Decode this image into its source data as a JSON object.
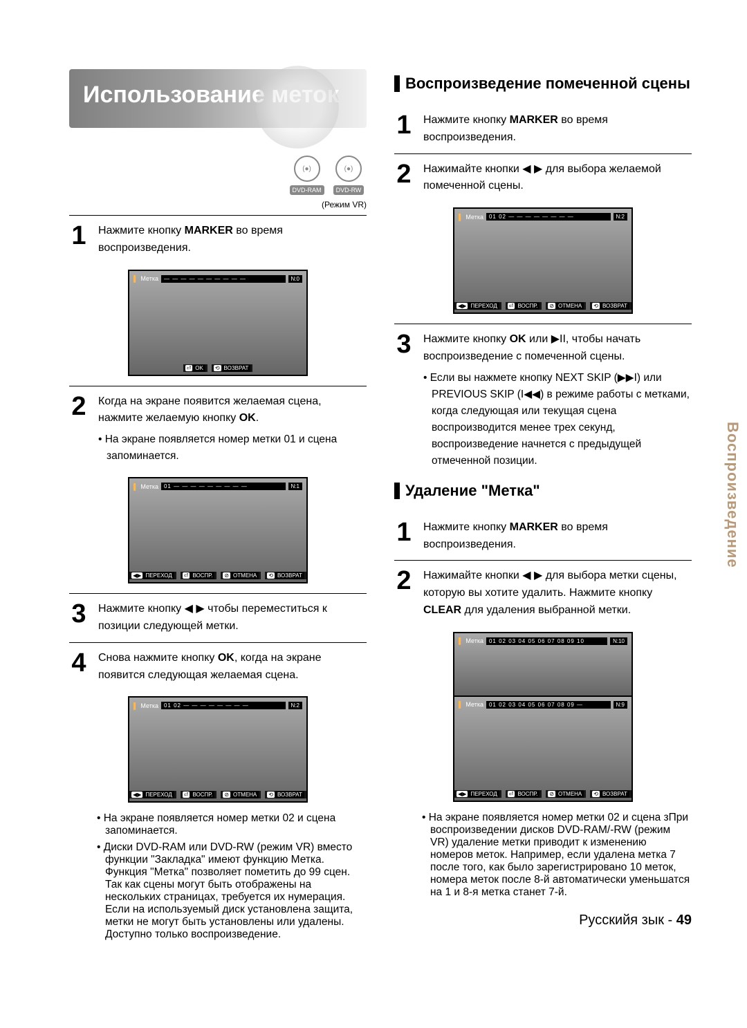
{
  "page": {
    "language_footer": "Русскийя зык",
    "page_number": "49",
    "side_tab": "Воспроизведение"
  },
  "banner": {
    "title": "Использование меток"
  },
  "disc_icons": {
    "items": [
      {
        "circle": "(●)",
        "label": "DVD-RAM"
      },
      {
        "circle": "(●)",
        "label": "DVD-RW"
      }
    ],
    "mode": "(Режим VR)"
  },
  "left_steps": [
    {
      "n": "1",
      "text_pre": "Нажмите кнопку ",
      "bold": "MARKER",
      "text_post": " во время воспроизведения.",
      "screenshot": {
        "label": "Метка",
        "slots": "— — — — — — — — — —",
        "count": "N:0",
        "bottom": [
          {
            "key": "⏎",
            "label": "OK"
          },
          {
            "key": "⟲",
            "label": "ВОЗВРАТ"
          }
        ]
      }
    },
    {
      "n": "2",
      "text_pre": "Когда на экране появится желаемая сцена, нажмите желаемую кнопку ",
      "bold": "OK",
      "text_post": ".",
      "bullets": [
        "На экране появляется номер метки 01 и сцена запоминается."
      ],
      "screenshot": {
        "label": "Метка",
        "slots": "01 — — — — — — — — —",
        "count": "N:1",
        "bottom": [
          {
            "key": "◀▶",
            "label": "ПЕРЕХОД"
          },
          {
            "key": "⏎",
            "label": "ВОСПР."
          },
          {
            "key": "⊘",
            "label": "ОТМЕНА"
          },
          {
            "key": "⟲",
            "label": "ВОЗВРАТ"
          }
        ]
      }
    },
    {
      "n": "3",
      "text_pre": "Нажмите кнопку ◀ ▶ чтобы переместиться к позиции следующей метки.",
      "bold": "",
      "text_post": ""
    },
    {
      "n": "4",
      "text_pre": "Снова нажмите кнопку ",
      "bold": "OK",
      "text_post": ", когда на экране появится следующая желаемая сцена.",
      "screenshot": {
        "label": "Метка",
        "slots": "01 02 — — — — — — — —",
        "count": "N:2",
        "bottom": [
          {
            "key": "◀▶",
            "label": "ПЕРЕХОД"
          },
          {
            "key": "⏎",
            "label": "ВОСПР."
          },
          {
            "key": "⊘",
            "label": "ОТМЕНА"
          },
          {
            "key": "⟲",
            "label": "ВОЗВРАТ"
          }
        ]
      },
      "bullets_after": [
        "На экране появляется номер метки 02 и сцена запоминается.",
        "Диски DVD-RAM или DVD-RW (режим VR) вместо функции \"Закладка\" имеют функцию Метка. Функция \"Метка\" позволяет пометить до 99 сцен. Так как сцены могут быть отображены на нескольких страницах, требуется их нумерация. Если на используемый диск установлена защита, метки не могут быть установлены или удалены. Доступно только воспроизведение."
      ]
    }
  ],
  "right_sections": [
    {
      "heading": "Воспроизведение помеченной сцены",
      "steps": [
        {
          "n": "1",
          "text_pre": "Нажмите кнопку ",
          "bold": "MARKER",
          "text_post": " во время воспроизведения."
        },
        {
          "n": "2",
          "text_pre": "Нажимайте кнопки ◀ ▶ для выбора желаемой помеченной сцены.",
          "bold": "",
          "text_post": "",
          "screenshot": {
            "label": "Метка",
            "slots": "01 02 — — — — — — — —",
            "count": "N:2",
            "bottom": [
              {
                "key": "◀▶",
                "label": "ПЕРЕХОД"
              },
              {
                "key": "⏎",
                "label": "ВОСПР."
              },
              {
                "key": "⊘",
                "label": "ОТМЕНА"
              },
              {
                "key": "⟲",
                "label": "ВОЗВРАТ"
              }
            ]
          }
        },
        {
          "n": "3",
          "html": "Нажмите кнопку <b>OK</b> или ▶II, чтобы начать воспроизведение с помеченной сцены.",
          "bullets": [
            "Если вы нажмете кнопку NEXT SKIP (▶▶I) или PREVIOUS SKIP (I◀◀) в режиме работы с метками, когда следующая или текущая сцена воспроизводится менее трех секунд, воспроизведение начнется с предыдущей отмеченной позиции."
          ]
        }
      ]
    },
    {
      "heading": "Удаление \"Метка\"",
      "steps": [
        {
          "n": "1",
          "text_pre": "Нажмите кнопку ",
          "bold": "MARKER",
          "text_post": " во время воспроизведения."
        },
        {
          "n": "2",
          "html": "Нажимайте кнопки ◀ ▶ для выбора метки сцены, которую вы хотите удалить. Нажмите кнопку <b>CLEAR</b> для удаления выбранной метки.",
          "screenshot_pair": [
            {
              "label": "Метка",
              "slots": "01 02 03 04 05 06 07 08 09 10",
              "count": "N:10",
              "bottom": []
            },
            {
              "label": "Метка",
              "slots": "01 02 03 04 05 06 07 08 09 —",
              "count": "N:9",
              "bottom": [
                {
                  "key": "◀▶",
                  "label": "ПЕРЕХОД"
                },
                {
                  "key": "⏎",
                  "label": "ВОСПР."
                },
                {
                  "key": "⊘",
                  "label": "ОТМЕНА"
                },
                {
                  "key": "⟲",
                  "label": "ВОЗВРАТ"
                }
              ]
            }
          ],
          "bullets_after": [
            "На экране появляется номер метки 02 и сцена зПри воспроизведении дисков DVD-RAM/-RW (режим VR) удаление метки приводит к изменению номеров меток. Например, если удалена метка 7 после того, как было зарегистрировано 10 меток, номера меток после 8-й автоматически уменьшатся на 1 и 8-я метка станет 7-й."
          ]
        }
      ]
    }
  ]
}
